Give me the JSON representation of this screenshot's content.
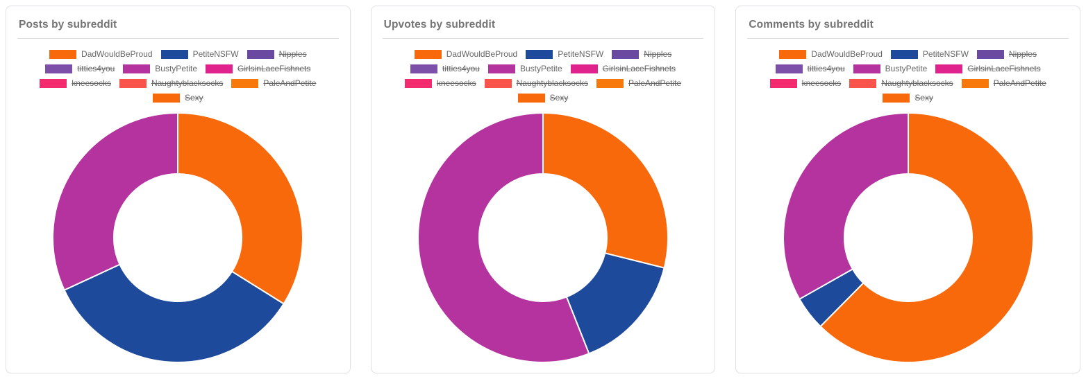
{
  "page": {
    "background": "#ffffff"
  },
  "cards": [
    {
      "title": "Posts by subreddit"
    },
    {
      "title": "Upvotes by subreddit"
    },
    {
      "title": "Comments by subreddit"
    }
  ],
  "legend_items": [
    {
      "label": "DadWouldBeProud",
      "color": "#F8690B",
      "hidden": false
    },
    {
      "label": "PetiteNSFW",
      "color": "#1E4A9B",
      "hidden": false
    },
    {
      "label": "Nipples",
      "color": "#6A4AA1",
      "hidden": true
    },
    {
      "label": "titties4you",
      "color": "#7C50A8",
      "hidden": true
    },
    {
      "label": "BustyPetite",
      "color": "#B5339E",
      "hidden": false
    },
    {
      "label": "GirlsinLaceFishnets",
      "color": "#E0238C",
      "hidden": true
    },
    {
      "label": "kneesocks",
      "color": "#F42A6F",
      "hidden": true
    },
    {
      "label": "Naughtyblacksocks",
      "color": "#F8544B",
      "hidden": true
    },
    {
      "label": "PaleAndPetite",
      "color": "#F8790B",
      "hidden": true
    },
    {
      "label": "Sexy",
      "color": "#F8690B",
      "hidden": true
    }
  ],
  "chart_data": [
    {
      "type": "pie",
      "variant": "donut",
      "title": "Posts by subreddit",
      "categories": [
        "DadWouldBeProud",
        "PetiteNSFW",
        "BustyPetite"
      ],
      "values": [
        33.9,
        34.2,
        31.9
      ],
      "unit": "percent-of-ring",
      "colors": [
        "#F8690B",
        "#1E4A9B",
        "#B5339E"
      ],
      "start_angle_deg_from_top": 0,
      "direction": "clockwise",
      "hole_ratio": 0.51,
      "legend_position": "top",
      "hidden_categories": [
        "Nipples",
        "titties4you",
        "GirlsinLaceFishnets",
        "kneesocks",
        "Naughtyblacksocks",
        "PaleAndPetite",
        "Sexy"
      ]
    },
    {
      "type": "pie",
      "variant": "donut",
      "title": "Upvotes by subreddit",
      "categories": [
        "DadWouldBeProud",
        "PetiteNSFW",
        "BustyPetite"
      ],
      "values": [
        28.9,
        15.1,
        56.0
      ],
      "unit": "percent-of-ring",
      "colors": [
        "#F8690B",
        "#1E4A9B",
        "#B5339E"
      ],
      "start_angle_deg_from_top": 0,
      "direction": "clockwise",
      "hole_ratio": 0.51,
      "legend_position": "top",
      "hidden_categories": [
        "Nipples",
        "titties4you",
        "GirlsinLaceFishnets",
        "kneesocks",
        "Naughtyblacksocks",
        "PaleAndPetite",
        "Sexy"
      ]
    },
    {
      "type": "pie",
      "variant": "donut",
      "title": "Comments by subreddit",
      "categories": [
        "DadWouldBeProud",
        "PetiteNSFW",
        "BustyPetite"
      ],
      "values": [
        62.4,
        4.4,
        33.2
      ],
      "unit": "percent-of-ring",
      "colors": [
        "#F8690B",
        "#1E4A9B",
        "#B5339E"
      ],
      "start_angle_deg_from_top": 0,
      "direction": "clockwise",
      "hole_ratio": 0.51,
      "legend_position": "top",
      "hidden_categories": [
        "Nipples",
        "titties4you",
        "GirlsinLaceFishnets",
        "kneesocks",
        "Naughtyblacksocks",
        "PaleAndPetite",
        "Sexy"
      ]
    }
  ]
}
